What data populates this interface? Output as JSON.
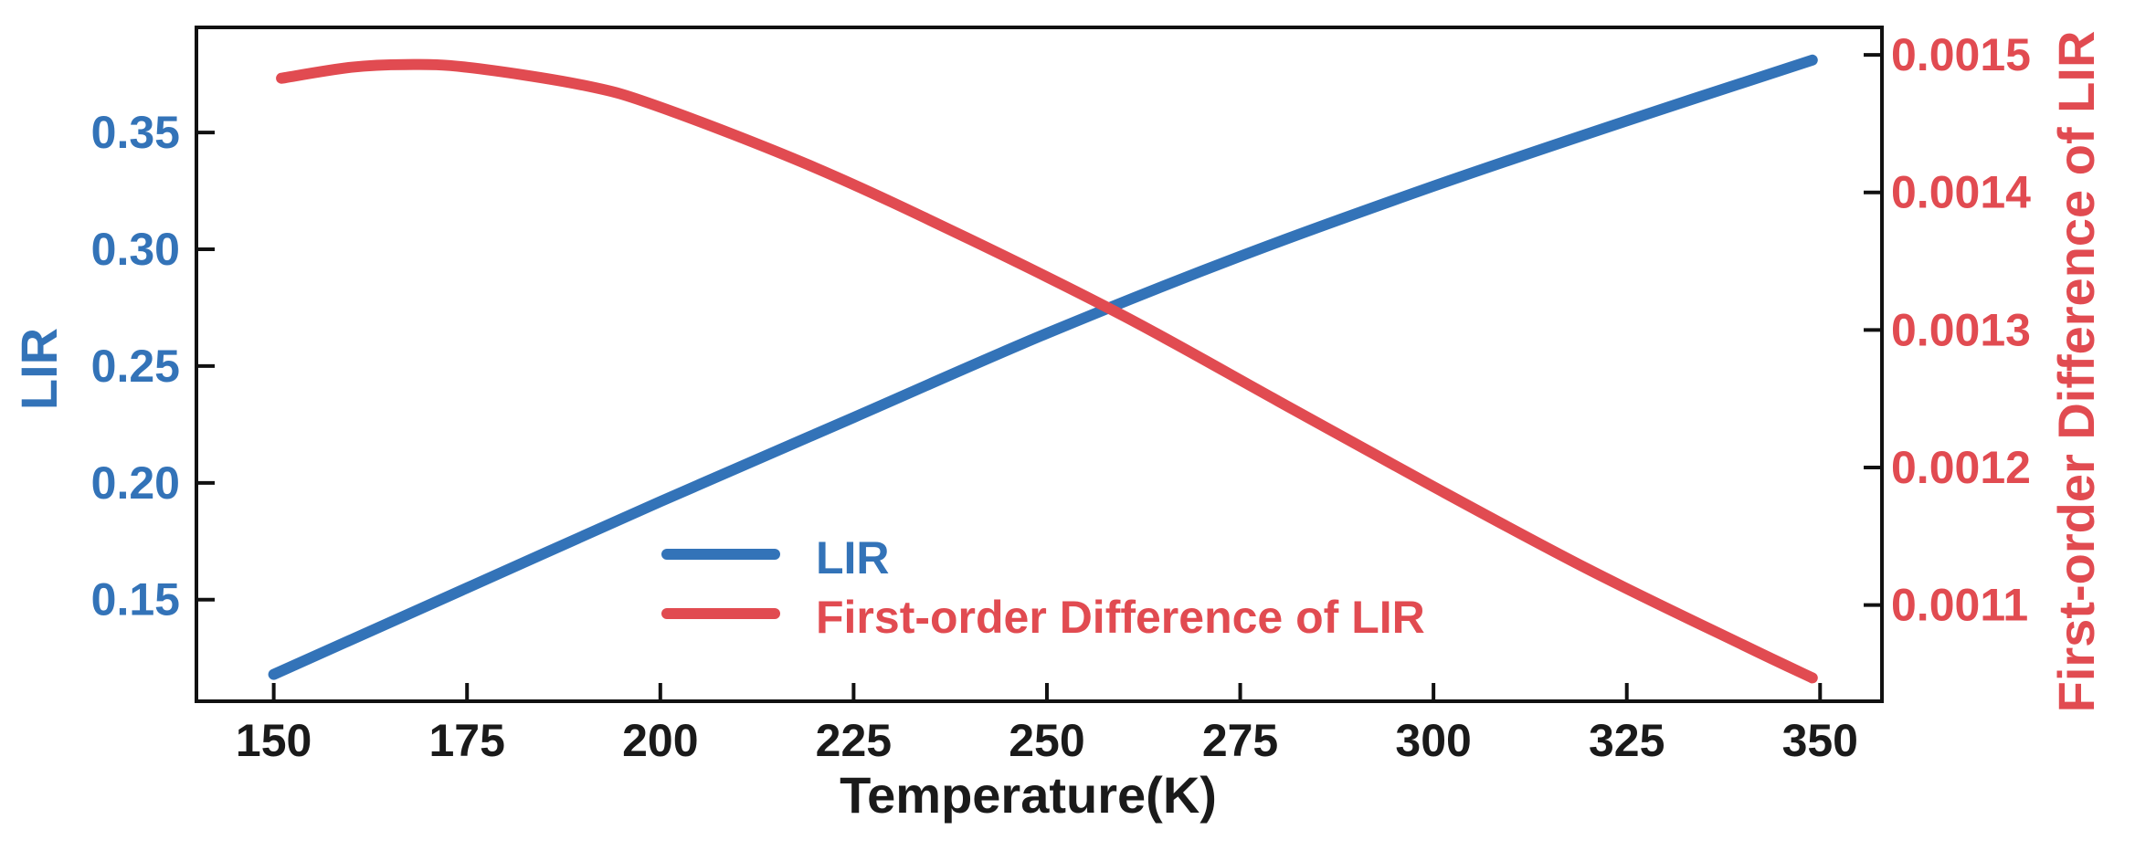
{
  "chart_data": {
    "type": "line",
    "xlabel": "Temperature(K)",
    "ylabel_left": "LIR",
    "ylabel_right": "First-order Difference of LIR",
    "xlim": [
      140,
      358
    ],
    "ylim_left": [
      0.1065,
      0.395
    ],
    "ylim_right": [
      0.00103,
      0.00152
    ],
    "x_ticks": [
      150,
      175,
      200,
      225,
      250,
      275,
      300,
      325,
      350
    ],
    "y_ticks_left": [
      0.15,
      0.2,
      0.25,
      0.3,
      0.35
    ],
    "y_ticks_right": [
      0.0011,
      0.0012,
      0.0013,
      0.0014,
      0.0015
    ],
    "x_tick_labels": [
      "150",
      "175",
      "200",
      "225",
      "250",
      "275",
      "300",
      "325",
      "350"
    ],
    "y_tick_labels_left": [
      "0.15",
      "0.20",
      "0.25",
      "0.30",
      "0.35"
    ],
    "y_tick_labels_right": [
      "0.0011",
      "0.0012",
      "0.0013",
      "0.0014",
      "0.0015"
    ],
    "legend_position": "lower-center",
    "grid": false,
    "series": [
      {
        "name": "LIR",
        "axis": "left",
        "color": "#3373b8",
        "x": [
          150,
          175,
          200,
          225,
          250,
          275,
          300,
          325,
          349
        ],
        "values": [
          0.118,
          0.155,
          0.192,
          0.228,
          0.264,
          0.297,
          0.327,
          0.355,
          0.381
        ]
      },
      {
        "name": "First-order Difference of LIR",
        "axis": "right",
        "color": "#e14b51",
        "x": [
          151,
          160,
          167,
          175,
          190,
          200,
          220,
          240,
          260,
          280,
          300,
          320,
          340,
          349
        ],
        "values": [
          0.001483,
          0.001491,
          0.001493,
          0.001491,
          0.001478,
          0.001462,
          0.001418,
          0.001366,
          0.00131,
          0.001248,
          0.001186,
          0.001126,
          0.001071,
          0.001047
        ]
      }
    ]
  }
}
